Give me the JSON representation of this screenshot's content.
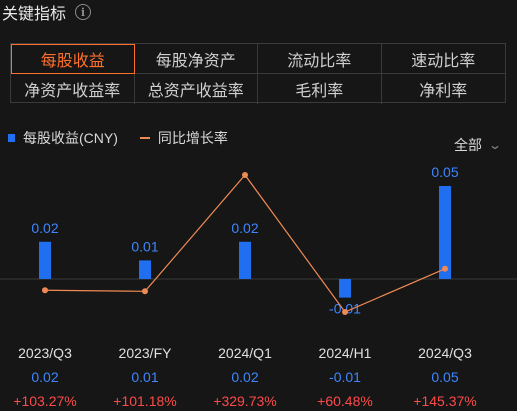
{
  "header": {
    "title": "关键指标",
    "info_icon": "info-icon"
  },
  "tabs": [
    {
      "label": "每股收益",
      "active": true
    },
    {
      "label": "每股净资产",
      "active": false
    },
    {
      "label": "流动比率",
      "active": false
    },
    {
      "label": "速动比率",
      "active": false
    },
    {
      "label": "净资产收益率",
      "active": false
    },
    {
      "label": "总资产收益率",
      "active": false
    },
    {
      "label": "毛利率",
      "active": false
    },
    {
      "label": "净利率",
      "active": false
    }
  ],
  "legend": {
    "bar_label": "每股收益(CNY)",
    "line_label": "同比增长率"
  },
  "range_selector": {
    "label": "全部",
    "icon": "chevron-down-icon"
  },
  "colors": {
    "bar": "#1f6ff0",
    "line": "#f08a54",
    "active_tab": "#ff6f2c",
    "positive": "#ff4a4a",
    "value": "#3d86ff"
  },
  "chart_data": {
    "type": "bar",
    "categories": [
      "2023/Q3",
      "2023/FY",
      "2024/Q1",
      "2024/H1",
      "2024/Q3"
    ],
    "series": [
      {
        "name": "每股收益(CNY)",
        "type": "bar",
        "values": [
          0.02,
          0.01,
          0.02,
          -0.01,
          0.05
        ],
        "labels": [
          "0.02",
          "0.01",
          "0.02",
          "-0.01",
          "0.05"
        ]
      },
      {
        "name": "同比增长率",
        "type": "line",
        "values": [
          103.27,
          101.18,
          329.73,
          60.48,
          145.37
        ],
        "labels": [
          "+103.27%",
          "+101.18%",
          "+329.73%",
          "+60.48%",
          "+145.37%"
        ]
      }
    ]
  }
}
